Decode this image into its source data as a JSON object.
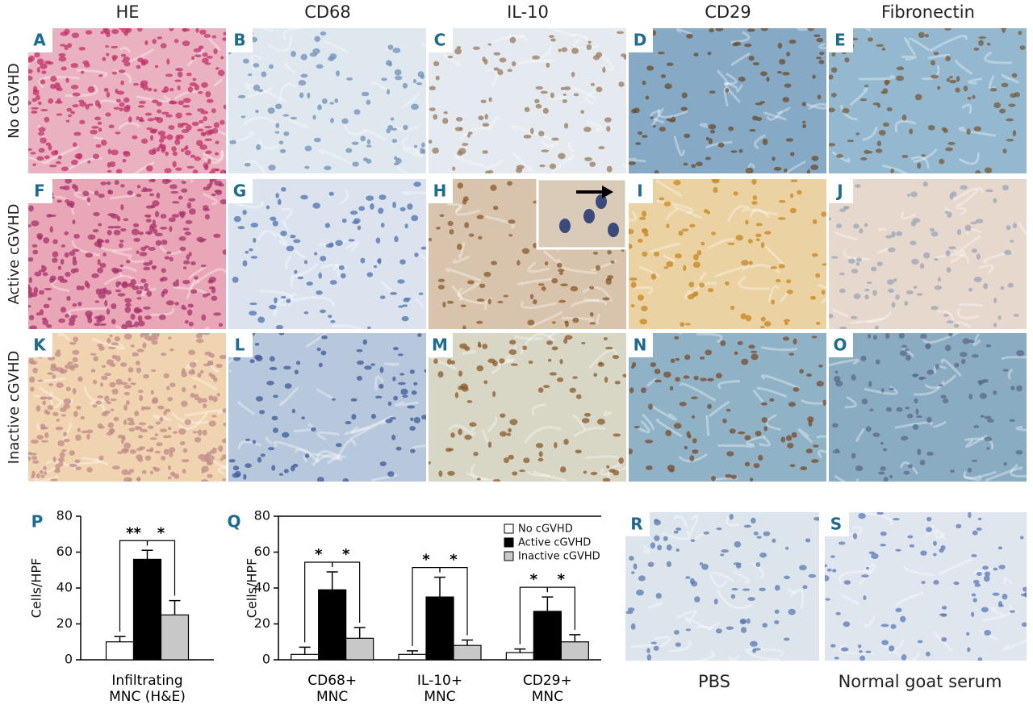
{
  "column_headers": [
    "HE",
    "CD68",
    "IL-10",
    "CD29",
    "Fibronectin"
  ],
  "row_labels": [
    "No cGVHD",
    "Active cGVHD",
    "Inactive cGVHD"
  ],
  "panel_labels": [
    "A",
    "B",
    "C",
    "D",
    "E",
    "F",
    "G",
    "H",
    "I",
    "J",
    "K",
    "L",
    "M",
    "N",
    "O",
    "R",
    "S"
  ],
  "control_labels": [
    "PBS",
    "Normal goat serum"
  ],
  "chart_data": [
    {
      "type": "bar",
      "panel": "P",
      "ylabel": "Cells/HPF",
      "categories": [
        "Infiltrating\nMNC (H&E)"
      ],
      "series": [
        {
          "color": "#ffffff",
          "values": [
            10
          ],
          "errors": [
            3
          ]
        },
        {
          "color": "#000000",
          "values": [
            56
          ],
          "errors": [
            5
          ]
        },
        {
          "color": "#c8c8c8",
          "values": [
            25
          ],
          "errors": [
            8
          ]
        }
      ],
      "annotations": [
        [
          "**",
          "*"
        ]
      ],
      "ylim": [
        0,
        80
      ],
      "yticks": [
        0,
        20,
        40,
        60,
        80
      ]
    },
    {
      "type": "bar",
      "panel": "Q",
      "ylabel": "Cells/HPF",
      "categories": [
        "CD68+\nMNC",
        "IL-10+\nMNC",
        "CD29+\nMNC"
      ],
      "series": [
        {
          "name": "No cGVHD",
          "color": "#ffffff",
          "values": [
            3,
            3,
            4
          ],
          "errors": [
            4,
            2,
            2
          ]
        },
        {
          "name": "Active cGVHD",
          "color": "#000000",
          "values": [
            39,
            35,
            27
          ],
          "errors": [
            10,
            11,
            8
          ]
        },
        {
          "name": "Inactive cGVHD",
          "color": "#c8c8c8",
          "values": [
            12,
            8,
            10
          ],
          "errors": [
            6,
            3,
            4
          ]
        }
      ],
      "annotations": [
        [
          "*",
          "*"
        ],
        [
          "*",
          "*"
        ],
        [
          "*",
          "*"
        ]
      ],
      "legend": "upper right",
      "ylim": [
        0,
        80
      ],
      "yticks": [
        0,
        20,
        40,
        60,
        80
      ]
    }
  ]
}
